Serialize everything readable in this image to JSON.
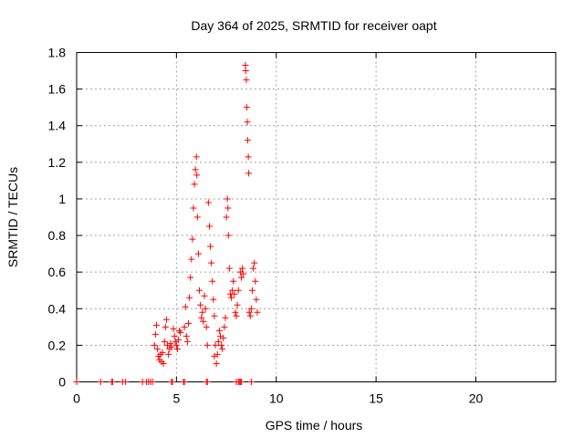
{
  "chart_data": {
    "type": "scatter",
    "title": "Day 364 of 2025, SRMTID for receiver oapt",
    "xlabel": "GPS time / hours",
    "ylabel": "SRMTID / TECUs",
    "xlim": [
      0,
      24
    ],
    "ylim": [
      0,
      1.8
    ],
    "xticks": [
      "0",
      "5",
      "10",
      "15",
      "20"
    ],
    "yticks": [
      "0",
      "0.2",
      "0.4",
      "0.6",
      "0.8",
      "1",
      "1.2",
      "1.4",
      "1.6",
      "1.8"
    ],
    "grid": true,
    "marker": "+",
    "color": "#ff0000",
    "series": [
      {
        "name": "SRMTID",
        "points": [
          [
            0.0,
            0.0
          ],
          [
            1.2,
            0.0
          ],
          [
            1.75,
            0.0
          ],
          [
            1.8,
            0.0
          ],
          [
            2.3,
            0.0
          ],
          [
            2.45,
            0.0
          ],
          [
            3.3,
            0.0
          ],
          [
            3.5,
            0.0
          ],
          [
            3.6,
            0.0
          ],
          [
            3.7,
            0.0
          ],
          [
            3.8,
            0.0
          ],
          [
            4.75,
            0.0
          ],
          [
            4.8,
            0.0
          ],
          [
            5.35,
            0.0
          ],
          [
            5.4,
            0.0
          ],
          [
            6.5,
            0.0
          ],
          [
            6.55,
            0.0
          ],
          [
            8.0,
            0.0
          ],
          [
            8.1,
            0.0
          ],
          [
            8.15,
            0.0
          ],
          [
            8.2,
            0.0
          ],
          [
            8.25,
            0.0
          ],
          [
            8.75,
            0.0
          ],
          [
            3.9,
            0.2
          ],
          [
            3.95,
            0.26
          ],
          [
            4.0,
            0.31
          ],
          [
            4.05,
            0.18
          ],
          [
            4.1,
            0.14
          ],
          [
            4.15,
            0.12
          ],
          [
            4.2,
            0.15
          ],
          [
            4.25,
            0.11
          ],
          [
            4.3,
            0.16
          ],
          [
            4.35,
            0.1
          ],
          [
            4.4,
            0.22
          ],
          [
            4.45,
            0.3
          ],
          [
            4.5,
            0.34
          ],
          [
            4.55,
            0.2
          ],
          [
            4.6,
            0.15
          ],
          [
            4.65,
            0.18
          ],
          [
            4.7,
            0.21
          ],
          [
            4.75,
            0.19
          ],
          [
            4.85,
            0.29
          ],
          [
            4.9,
            0.25
          ],
          [
            4.95,
            0.22
          ],
          [
            5.0,
            0.2
          ],
          [
            5.05,
            0.18
          ],
          [
            5.1,
            0.23
          ],
          [
            5.15,
            0.28
          ],
          [
            5.2,
            0.27
          ],
          [
            5.4,
            0.3
          ],
          [
            5.45,
            0.41
          ],
          [
            5.5,
            0.25
          ],
          [
            5.55,
            0.22
          ],
          [
            5.6,
            0.32
          ],
          [
            5.65,
            0.46
          ],
          [
            5.7,
            0.57
          ],
          [
            5.75,
            0.67
          ],
          [
            5.8,
            0.78
          ],
          [
            5.85,
            0.95
          ],
          [
            5.9,
            1.08
          ],
          [
            5.95,
            1.16
          ],
          [
            6.0,
            1.23
          ],
          [
            6.02,
            1.13
          ],
          [
            6.05,
            0.9
          ],
          [
            6.1,
            0.7
          ],
          [
            6.15,
            0.5
          ],
          [
            6.2,
            0.42
          ],
          [
            6.25,
            0.35
          ],
          [
            6.3,
            0.38
          ],
          [
            6.35,
            0.33
          ],
          [
            6.4,
            0.47
          ],
          [
            6.45,
            0.4
          ],
          [
            6.5,
            0.3
          ],
          [
            6.55,
            0.2
          ],
          [
            6.6,
            0.98
          ],
          [
            6.65,
            0.85
          ],
          [
            6.7,
            0.74
          ],
          [
            6.75,
            0.65
          ],
          [
            6.8,
            0.55
          ],
          [
            6.85,
            0.45
          ],
          [
            6.9,
            0.36
          ],
          [
            6.95,
            0.2
          ],
          [
            6.9,
            0.14
          ],
          [
            7.0,
            0.1
          ],
          [
            7.05,
            0.15
          ],
          [
            7.1,
            0.22
          ],
          [
            7.15,
            0.28
          ],
          [
            7.2,
            0.25
          ],
          [
            7.25,
            0.2
          ],
          [
            7.3,
            0.18
          ],
          [
            7.35,
            0.24
          ],
          [
            7.4,
            0.3
          ],
          [
            7.45,
            0.35
          ],
          [
            7.5,
            0.9
          ],
          [
            7.55,
            1.0
          ],
          [
            7.58,
            0.95
          ],
          [
            7.6,
            0.8
          ],
          [
            7.65,
            0.62
          ],
          [
            7.7,
            0.48
          ],
          [
            7.75,
            0.46
          ],
          [
            7.8,
            0.5
          ],
          [
            7.85,
            0.55
          ],
          [
            7.9,
            0.48
          ],
          [
            7.95,
            0.38
          ],
          [
            8.0,
            0.36
          ],
          [
            8.05,
            0.42
          ],
          [
            8.1,
            0.5
          ],
          [
            8.2,
            0.6
          ],
          [
            8.25,
            0.57
          ],
          [
            8.3,
            0.62
          ],
          [
            8.35,
            0.59
          ],
          [
            8.45,
            1.73
          ],
          [
            8.47,
            1.7
          ],
          [
            8.5,
            1.65
          ],
          [
            8.52,
            1.5
          ],
          [
            8.55,
            1.42
          ],
          [
            8.57,
            1.32
          ],
          [
            8.6,
            1.23
          ],
          [
            8.62,
            1.14
          ],
          [
            8.65,
            0.38
          ],
          [
            8.7,
            0.36
          ],
          [
            8.75,
            0.4
          ],
          [
            8.8,
            0.5
          ],
          [
            8.85,
            0.62
          ],
          [
            8.9,
            0.65
          ],
          [
            8.95,
            0.55
          ],
          [
            9.0,
            0.45
          ],
          [
            9.05,
            0.38
          ]
        ]
      }
    ]
  }
}
